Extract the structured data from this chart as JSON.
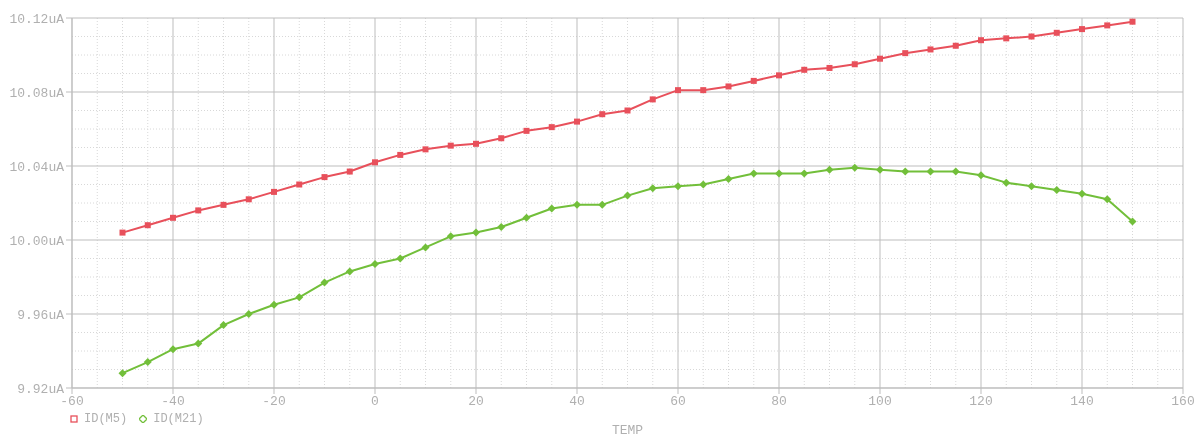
{
  "chart_data": {
    "type": "line",
    "xlabel": "TEMP",
    "x": [
      -50,
      -45,
      -40,
      -35,
      -30,
      -25,
      -20,
      -15,
      -10,
      -5,
      0,
      5,
      10,
      15,
      20,
      25,
      30,
      35,
      40,
      45,
      50,
      55,
      60,
      65,
      70,
      75,
      80,
      85,
      90,
      95,
      100,
      105,
      110,
      115,
      120,
      125,
      130,
      135,
      140,
      145,
      150
    ],
    "series": [
      {
        "name": "ID(M5)",
        "color": "#e8505b",
        "marker": "square",
        "values": [
          10.004,
          10.008,
          10.012,
          10.016,
          10.019,
          10.022,
          10.026,
          10.03,
          10.034,
          10.037,
          10.042,
          10.046,
          10.049,
          10.051,
          10.052,
          10.055,
          10.059,
          10.061,
          10.064,
          10.068,
          10.07,
          10.076,
          10.081,
          10.081,
          10.083,
          10.086,
          10.089,
          10.092,
          10.093,
          10.095,
          10.098,
          10.101,
          10.103,
          10.105,
          10.108,
          10.109,
          10.11,
          10.112,
          10.114,
          10.116,
          10.118
        ]
      },
      {
        "name": "ID(M21)",
        "color": "#72bf3a",
        "marker": "diamond",
        "values": [
          9.928,
          9.934,
          9.941,
          9.944,
          9.954,
          9.96,
          9.965,
          9.969,
          9.977,
          9.983,
          9.987,
          9.99,
          9.996,
          10.002,
          10.004,
          10.007,
          10.012,
          10.017,
          10.019,
          10.019,
          10.024,
          10.028,
          10.029,
          10.03,
          10.033,
          10.036,
          10.036,
          10.036,
          10.038,
          10.039,
          10.038,
          10.037,
          10.037,
          10.037,
          10.035,
          10.031,
          10.029,
          10.027,
          10.025,
          10.022,
          10.01
        ]
      }
    ],
    "xlim": [
      -60,
      160
    ],
    "xticks": [
      -60,
      -40,
      -20,
      0,
      20,
      40,
      60,
      80,
      100,
      120,
      140,
      160
    ],
    "ylim": [
      9.92,
      10.12
    ],
    "yticks": [
      {
        "value": 9.92,
        "label": "9.92uA"
      },
      {
        "value": 9.96,
        "label": "9.96uA"
      },
      {
        "value": 10.0,
        "label": "10.00uA"
      },
      {
        "value": 10.04,
        "label": "10.04uA"
      },
      {
        "value": 10.08,
        "label": "10.08uA"
      },
      {
        "value": 10.12,
        "label": "10.12uA"
      }
    ],
    "grid": true,
    "legend": "bottom left",
    "line_style": "solid"
  }
}
